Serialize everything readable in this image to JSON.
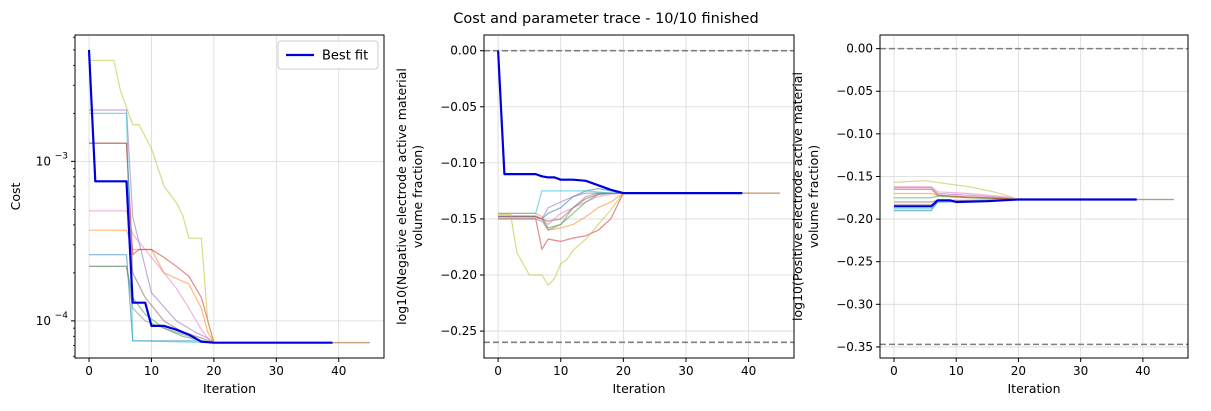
{
  "figure": {
    "title": "Cost and parameter trace - 10/10 finished"
  },
  "colors": {
    "best_fit": "#0000dd",
    "reference_line": "#808080",
    "grid": "#d9d9d9",
    "runs": [
      "#1f77b4",
      "#ff7f0e",
      "#2ca02c",
      "#d62728",
      "#9467bd",
      "#8c564b",
      "#e377c2",
      "#7f7f7f",
      "#bcbd22",
      "#17becf"
    ]
  },
  "chart_data": [
    {
      "type": "line",
      "yscale": "log",
      "xlabel": "Iteration",
      "ylabel": "Cost",
      "xlim": [
        -2.25,
        47.25
      ],
      "ylim": [
        5.85e-05,
        0.0062
      ],
      "xticks": [
        0,
        10,
        20,
        30,
        40
      ],
      "yticks": [
        {
          "value": 0.0001,
          "base": "10",
          "exp": "−4"
        },
        {
          "value": 0.001,
          "base": "10",
          "exp": "−3"
        }
      ],
      "grid": true,
      "legend": {
        "position": "top-right",
        "entries": [
          "Best fit"
        ]
      },
      "best_fit": {
        "name": "Best fit",
        "x": [
          0,
          1,
          6,
          7,
          9,
          10,
          12,
          14,
          16,
          18,
          20,
          39
        ],
        "y": [
          0.005,
          0.00075,
          0.00075,
          0.00013,
          0.00013,
          9.3e-05,
          9.3e-05,
          8.8e-05,
          8.2e-05,
          7.4e-05,
          7.3e-05,
          7.3e-05
        ]
      },
      "runs": [
        {
          "x": [
            0,
            6,
            7,
            18,
            20,
            45
          ],
          "y": [
            0.00026,
            0.00026,
            7.5e-05,
            7.5e-05,
            7.3e-05,
            7.3e-05
          ]
        },
        {
          "x": [
            0,
            6,
            7,
            10,
            12,
            16,
            18,
            19,
            20,
            45
          ],
          "y": [
            0.00037,
            0.00037,
            0.00028,
            0.00028,
            0.0002,
            0.00017,
            0.00012,
            8.5e-05,
            7.3e-05,
            7.3e-05
          ]
        },
        {
          "x": [
            0,
            6,
            7,
            9,
            12,
            15,
            18,
            20,
            38
          ],
          "y": [
            0.00022,
            0.00022,
            0.00014,
            0.00011,
            9e-05,
            8e-05,
            7.5e-05,
            7.3e-05,
            7.3e-05
          ]
        },
        {
          "x": [
            0,
            6,
            7,
            8,
            10,
            12,
            14,
            16,
            18,
            20,
            38
          ],
          "y": [
            0.0013,
            0.0013,
            0.00026,
            0.00028,
            0.00028,
            0.00025,
            0.00022,
            0.00019,
            0.00014,
            7.3e-05,
            7.3e-05
          ]
        },
        {
          "x": [
            0,
            6,
            7,
            10,
            14,
            17,
            19,
            20,
            38
          ],
          "y": [
            0.0021,
            0.0021,
            0.00045,
            0.00015,
            0.0001,
            8.5e-05,
            7.8e-05,
            7.3e-05,
            7.3e-05
          ]
        },
        {
          "x": [
            0,
            6,
            7,
            9,
            12,
            15,
            18,
            20,
            38
          ],
          "y": [
            0.0013,
            0.0013,
            0.0002,
            0.00014,
            0.0001,
            8.5e-05,
            7.8e-05,
            7.3e-05,
            7.3e-05
          ]
        },
        {
          "x": [
            0,
            6,
            7,
            10,
            12,
            14,
            16,
            18,
            19,
            20,
            38
          ],
          "y": [
            0.00049,
            0.00049,
            0.00035,
            0.00025,
            0.0002,
            0.00016,
            0.00012,
            8.8e-05,
            7.8e-05,
            7.3e-05,
            7.3e-05
          ]
        },
        {
          "x": [
            0,
            6,
            7,
            9,
            12,
            16,
            18,
            20,
            38
          ],
          "y": [
            0.00022,
            0.00022,
            0.00012,
            0.0001,
            9e-05,
            8e-05,
            7.5e-05,
            7.3e-05,
            7.3e-05
          ]
        },
        {
          "x": [
            0,
            4,
            5,
            7,
            8,
            10,
            12,
            14,
            15,
            16,
            17,
            18,
            19,
            20,
            38
          ],
          "y": [
            0.0043,
            0.0043,
            0.0028,
            0.0017,
            0.0017,
            0.0012,
            0.0007,
            0.00055,
            0.00046,
            0.00033,
            0.00033,
            0.00033,
            0.0001,
            7.3e-05,
            7.3e-05
          ]
        },
        {
          "x": [
            0,
            6,
            7,
            20,
            38
          ],
          "y": [
            0.002,
            0.002,
            7.5e-05,
            7.3e-05,
            7.3e-05
          ]
        }
      ]
    },
    {
      "type": "line",
      "xlabel": "Iteration",
      "ylabel": "log10(Negative electrode active material volume fraction)",
      "ylabel_lines": [
        "log10(Negative electrode active material",
        "volume fraction)"
      ],
      "xlim": [
        -2.25,
        47.25
      ],
      "ylim": [
        -0.274,
        0.014
      ],
      "xticks": [
        0,
        10,
        20,
        30,
        40
      ],
      "yticks": [
        0.0,
        -0.05,
        -0.1,
        -0.15,
        -0.2,
        -0.25
      ],
      "ytick_labels": [
        "0.00",
        "−0.05",
        "−0.10",
        "−0.15",
        "−0.20",
        "−0.25"
      ],
      "grid": true,
      "reference_lines": [
        0.0,
        -0.26
      ],
      "best_fit": {
        "name": "Best fit",
        "x": [
          0,
          1,
          6,
          7,
          8,
          9,
          10,
          12,
          14,
          16,
          18,
          20,
          39
        ],
        "y": [
          0.0,
          -0.11,
          -0.11,
          -0.112,
          -0.113,
          -0.113,
          -0.115,
          -0.115,
          -0.116,
          -0.12,
          -0.124,
          -0.127,
          -0.127
        ]
      },
      "runs": [
        {
          "x": [
            0,
            6,
            7,
            8,
            10,
            12,
            14,
            16,
            18,
            20,
            45
          ],
          "y": [
            -0.148,
            -0.148,
            -0.15,
            -0.145,
            -0.14,
            -0.13,
            -0.125,
            -0.123,
            -0.125,
            -0.127,
            -0.127
          ]
        },
        {
          "x": [
            0,
            6,
            7,
            8,
            10,
            12,
            14,
            16,
            18,
            20,
            45
          ],
          "y": [
            -0.145,
            -0.145,
            -0.148,
            -0.16,
            -0.158,
            -0.155,
            -0.148,
            -0.14,
            -0.135,
            -0.127,
            -0.127
          ]
        },
        {
          "x": [
            0,
            6,
            7,
            8,
            10,
            12,
            14,
            16,
            18,
            20,
            38
          ],
          "y": [
            -0.148,
            -0.148,
            -0.15,
            -0.158,
            -0.155,
            -0.145,
            -0.135,
            -0.128,
            -0.127,
            -0.127,
            -0.127
          ]
        },
        {
          "x": [
            0,
            6,
            7,
            8,
            10,
            12,
            14,
            16,
            17,
            18,
            20,
            38
          ],
          "y": [
            -0.15,
            -0.15,
            -0.177,
            -0.168,
            -0.17,
            -0.167,
            -0.165,
            -0.16,
            -0.155,
            -0.15,
            -0.127,
            -0.127
          ]
        },
        {
          "x": [
            0,
            6,
            7,
            8,
            10,
            12,
            14,
            16,
            18,
            20,
            38
          ],
          "y": [
            -0.148,
            -0.148,
            -0.15,
            -0.14,
            -0.135,
            -0.13,
            -0.127,
            -0.127,
            -0.127,
            -0.127,
            -0.127
          ]
        },
        {
          "x": [
            0,
            6,
            7,
            8,
            10,
            12,
            14,
            16,
            18,
            20,
            38
          ],
          "y": [
            -0.148,
            -0.148,
            -0.15,
            -0.152,
            -0.15,
            -0.14,
            -0.132,
            -0.128,
            -0.127,
            -0.127,
            -0.127
          ]
        },
        {
          "x": [
            0,
            6,
            7,
            8,
            10,
            12,
            14,
            16,
            18,
            20,
            38
          ],
          "y": [
            -0.147,
            -0.147,
            -0.15,
            -0.155,
            -0.145,
            -0.14,
            -0.135,
            -0.13,
            -0.128,
            -0.127,
            -0.127
          ]
        },
        {
          "x": [
            0,
            6,
            7,
            8,
            10,
            12,
            14,
            16,
            18,
            20,
            38
          ],
          "y": [
            -0.15,
            -0.15,
            -0.152,
            -0.16,
            -0.155,
            -0.14,
            -0.13,
            -0.127,
            -0.127,
            -0.127,
            -0.127
          ]
        },
        {
          "x": [
            0,
            2,
            3,
            5,
            7,
            8,
            9,
            10,
            11,
            12,
            14,
            16,
            18,
            20,
            38
          ],
          "y": [
            -0.146,
            -0.146,
            -0.18,
            -0.2,
            -0.2,
            -0.209,
            -0.203,
            -0.19,
            -0.186,
            -0.178,
            -0.168,
            -0.155,
            -0.142,
            -0.127,
            -0.127
          ]
        },
        {
          "x": [
            0,
            6,
            7,
            10,
            12,
            14,
            16,
            18,
            20,
            38
          ],
          "y": [
            -0.145,
            -0.145,
            -0.125,
            -0.125,
            -0.125,
            -0.125,
            -0.126,
            -0.127,
            -0.127,
            -0.127
          ]
        }
      ]
    },
    {
      "type": "line",
      "xlabel": "Iteration",
      "ylabel": "log10(Positive electrode active material volume fraction)",
      "ylabel_lines": [
        "log10(Positive electrode active material",
        "volume fraction)"
      ],
      "xlim": [
        -2.25,
        47.25
      ],
      "ylim": [
        -0.363,
        0.016
      ],
      "xticks": [
        0,
        10,
        20,
        30,
        40
      ],
      "yticks": [
        0.0,
        -0.05,
        -0.1,
        -0.15,
        -0.2,
        -0.25,
        -0.3,
        -0.35
      ],
      "ytick_labels": [
        "0.00",
        "−0.05",
        "−0.10",
        "−0.15",
        "−0.20",
        "−0.25",
        "−0.30",
        "−0.35"
      ],
      "grid": true,
      "reference_lines": [
        0.0,
        -0.347
      ],
      "best_fit": {
        "name": "Best fit",
        "x": [
          0,
          6,
          7,
          9,
          10,
          15,
          20,
          39
        ],
        "y": [
          -0.185,
          -0.185,
          -0.178,
          -0.178,
          -0.18,
          -0.179,
          -0.177,
          -0.177
        ]
      },
      "runs": [
        {
          "x": [
            0,
            6,
            7,
            12,
            18,
            20,
            45
          ],
          "y": [
            -0.19,
            -0.19,
            -0.18,
            -0.179,
            -0.178,
            -0.177,
            -0.177
          ]
        },
        {
          "x": [
            0,
            6,
            7,
            12,
            18,
            20,
            45
          ],
          "y": [
            -0.17,
            -0.17,
            -0.172,
            -0.175,
            -0.176,
            -0.177,
            -0.177
          ]
        },
        {
          "x": [
            0,
            6,
            7,
            12,
            18,
            20,
            38
          ],
          "y": [
            -0.175,
            -0.175,
            -0.173,
            -0.175,
            -0.176,
            -0.177,
            -0.177
          ]
        },
        {
          "x": [
            0,
            6,
            7,
            12,
            18,
            20,
            38
          ],
          "y": [
            -0.165,
            -0.165,
            -0.172,
            -0.174,
            -0.176,
            -0.177,
            -0.177
          ]
        },
        {
          "x": [
            0,
            6,
            7,
            12,
            18,
            20,
            38
          ],
          "y": [
            -0.163,
            -0.163,
            -0.17,
            -0.172,
            -0.175,
            -0.177,
            -0.177
          ]
        },
        {
          "x": [
            0,
            6,
            7,
            12,
            18,
            20,
            38
          ],
          "y": [
            -0.18,
            -0.18,
            -0.178,
            -0.178,
            -0.177,
            -0.177,
            -0.177
          ]
        },
        {
          "x": [
            0,
            6,
            7,
            12,
            18,
            20,
            38
          ],
          "y": [
            -0.162,
            -0.162,
            -0.168,
            -0.17,
            -0.174,
            -0.177,
            -0.177
          ]
        },
        {
          "x": [
            0,
            6,
            7,
            12,
            18,
            20,
            38
          ],
          "y": [
            -0.183,
            -0.183,
            -0.18,
            -0.179,
            -0.178,
            -0.177,
            -0.177
          ]
        },
        {
          "x": [
            0,
            5,
            8,
            12,
            16,
            18,
            20,
            38
          ],
          "y": [
            -0.157,
            -0.155,
            -0.158,
            -0.162,
            -0.168,
            -0.172,
            -0.177,
            -0.177
          ]
        },
        {
          "x": [
            0,
            6,
            7,
            12,
            18,
            20,
            38
          ],
          "y": [
            -0.188,
            -0.188,
            -0.18,
            -0.179,
            -0.178,
            -0.177,
            -0.177
          ]
        }
      ]
    }
  ]
}
